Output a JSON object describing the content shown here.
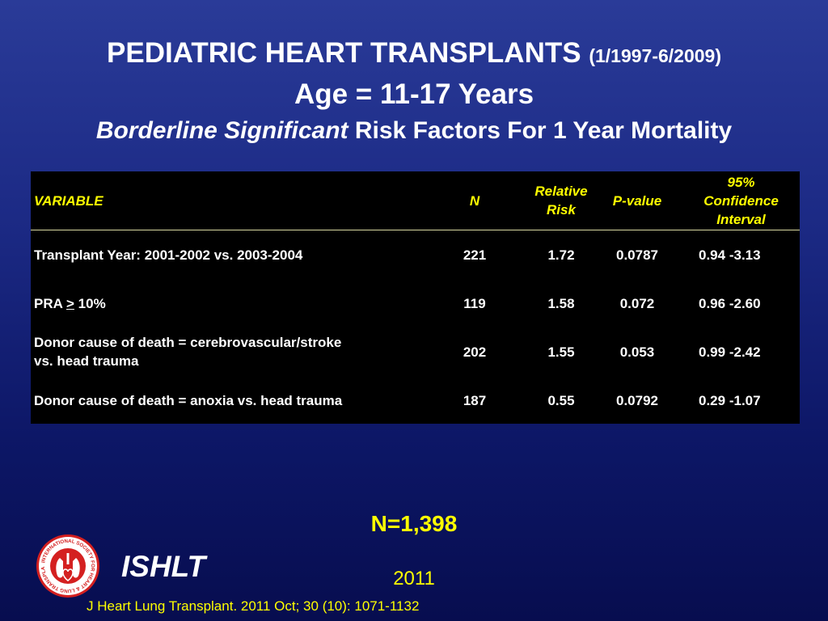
{
  "title": {
    "main": "PEDIATRIC HEART TRANSPLANTS",
    "dates": "(1/1997-6/2009)",
    "age_line": "Age = 11-17 Years",
    "subtitle_em": "Borderline Significant",
    "subtitle_rest": "Risk Factors For 1 Year Mortality"
  },
  "table": {
    "headers": {
      "variable": "VARIABLE",
      "n": "N",
      "rr_line1": "Relative",
      "rr_line2": "Risk",
      "pvalue": "P-value",
      "ci_line1": "95%",
      "ci_line2": "Confidence",
      "ci_line3": "Interval"
    },
    "rows": [
      {
        "variable": "Transplant Year: 2001-2002 vs. 2003-2004",
        "n": "221",
        "rr": "1.72",
        "p": "0.0787",
        "ci_low": "0.94",
        "ci_high": "-3.13"
      },
      {
        "variable_prefix": "PRA ",
        "variable_symbol": ">",
        "variable_suffix": " 10%",
        "n": "119",
        "rr": "1.58",
        "p": "0.072",
        "ci_low": "0.96",
        "ci_high": "-2.60"
      },
      {
        "variable_line1": "Donor cause of death = cerebrovascular/stroke",
        "variable_line2": "vs. head trauma",
        "n": "202",
        "rr": "1.55",
        "p": "0.053",
        "ci_low": "0.99",
        "ci_high": "-2.42"
      },
      {
        "variable": "Donor cause of death = anoxia vs. head trauma",
        "n": "187",
        "rr": "0.55",
        "p": "0.0792",
        "ci_low": "0.29",
        "ci_high": "-1.07"
      }
    ]
  },
  "n_total": "N=1,398",
  "logo": {
    "ring_text": "INTERNATIONAL SOCIETY FOR HEART & LUNG TRANSPLANTATION",
    "icon": "heart-lung-logo-icon"
  },
  "org": "ISHLT",
  "year": "2011",
  "citation": "J Heart Lung Transplant. 2011 Oct; 30 (10): 1071-1132",
  "colors": {
    "background_top": "#2a3b98",
    "background_bottom": "#070d4f",
    "accent_yellow": "#ffff00",
    "table_bg": "#000000",
    "logo_red": "#d42020"
  }
}
